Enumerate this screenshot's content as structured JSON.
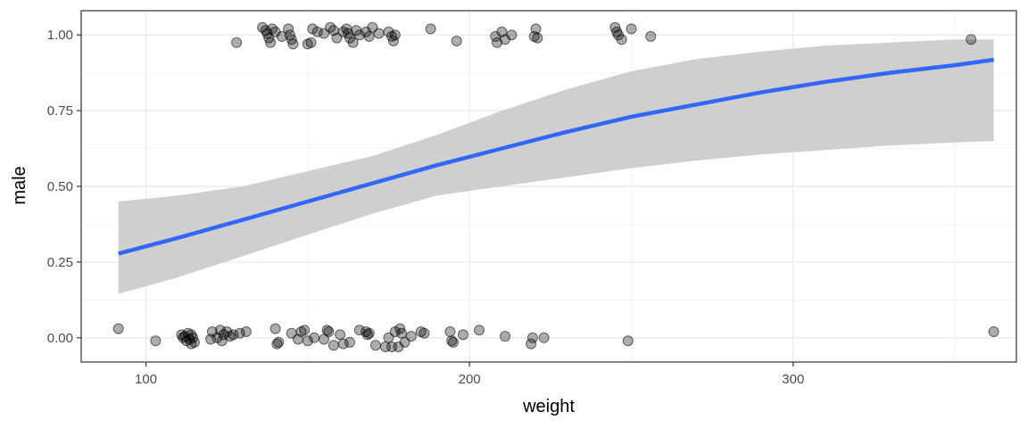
{
  "chart_data": {
    "type": "scatter",
    "title": "",
    "xlabel": "weight",
    "ylabel": "male",
    "xlim": [
      80,
      369
    ],
    "ylim": [
      -0.08,
      1.08
    ],
    "x_ticks": [
      100,
      200,
      300
    ],
    "x_tick_labels": [
      "100",
      "200",
      "300"
    ],
    "y_ticks": [
      0,
      0.25,
      0.5,
      0.75,
      1.0
    ],
    "y_tick_labels": [
      "0.00",
      "0.25",
      "0.50",
      "0.75",
      "1.00"
    ],
    "grid": true,
    "legend": "none",
    "colors": {
      "points": "#000000",
      "fit_line": "#3366ff",
      "confidence_band": "#cccccc",
      "grid_major": "#ebebeb",
      "grid_minor": "#f5f5f5",
      "panel_border": "#333333"
    },
    "series": [
      {
        "kind": "points",
        "points": [
          [
            91.5,
            0.03
          ],
          [
            103,
            -0.01
          ],
          [
            111,
            0.01
          ],
          [
            111.5,
            0.0
          ],
          [
            112,
            0.005
          ],
          [
            112.5,
            -0.01
          ],
          [
            113,
            0.015
          ],
          [
            113.5,
            -0.005
          ],
          [
            114,
            0.01
          ],
          [
            114,
            -0.02
          ],
          [
            114.5,
            0.0
          ],
          [
            115,
            -0.015
          ],
          [
            120,
            -0.005
          ],
          [
            120.5,
            0.02
          ],
          [
            122,
            0.0
          ],
          [
            123,
            0.025
          ],
          [
            123.5,
            -0.01
          ],
          [
            124,
            0.01
          ],
          [
            125,
            0.02
          ],
          [
            126,
            0.005
          ],
          [
            127,
            0.01
          ],
          [
            129,
            0.015
          ],
          [
            131,
            0.02
          ],
          [
            140,
            0.03
          ],
          [
            140.5,
            -0.02
          ],
          [
            141,
            -0.015
          ],
          [
            145,
            0.015
          ],
          [
            147,
            -0.005
          ],
          [
            148,
            0.02
          ],
          [
            149,
            0.025
          ],
          [
            150,
            -0.01
          ],
          [
            152,
            0.0
          ],
          [
            155,
            -0.005
          ],
          [
            156,
            0.025
          ],
          [
            156.5,
            0.02
          ],
          [
            158,
            -0.025
          ],
          [
            160,
            0.01
          ],
          [
            161,
            -0.02
          ],
          [
            163,
            -0.015
          ],
          [
            166,
            0.025
          ],
          [
            168,
            0.02
          ],
          [
            168.5,
            0.01
          ],
          [
            169,
            0.015
          ],
          [
            171,
            -0.025
          ],
          [
            174,
            -0.03
          ],
          [
            175,
            0.0
          ],
          [
            176,
            -0.03
          ],
          [
            177,
            0.02
          ],
          [
            178,
            -0.03
          ],
          [
            178.5,
            0.03
          ],
          [
            179,
            0.015
          ],
          [
            180,
            -0.015
          ],
          [
            182,
            0.005
          ],
          [
            185,
            0.02
          ],
          [
            186,
            0.015
          ],
          [
            194,
            0.02
          ],
          [
            194.5,
            -0.01
          ],
          [
            195,
            -0.015
          ],
          [
            198,
            0.01
          ],
          [
            203,
            0.025
          ],
          [
            211,
            0.005
          ],
          [
            219,
            -0.02
          ],
          [
            219.5,
            0.0
          ],
          [
            223,
            0.0
          ],
          [
            249,
            -0.01
          ],
          [
            362,
            0.02
          ],
          [
            128,
            0.975
          ],
          [
            136,
            1.025
          ],
          [
            137,
            1.015
          ],
          [
            137.5,
            1.005
          ],
          [
            138,
            0.99
          ],
          [
            138.5,
            0.975
          ],
          [
            139,
            1.02
          ],
          [
            140,
            1.01
          ],
          [
            142,
            0.995
          ],
          [
            144,
            1.02
          ],
          [
            144.5,
            1.0
          ],
          [
            145,
            0.985
          ],
          [
            145.5,
            0.97
          ],
          [
            150,
            0.97
          ],
          [
            151,
            0.975
          ],
          [
            151.5,
            1.02
          ],
          [
            153,
            1.01
          ],
          [
            155,
            1.005
          ],
          [
            157,
            1.025
          ],
          [
            158,
            1.015
          ],
          [
            159,
            0.99
          ],
          [
            161,
            1.01
          ],
          [
            162,
            1.02
          ],
          [
            162.5,
            1.005
          ],
          [
            163,
            0.99
          ],
          [
            164,
            0.975
          ],
          [
            165,
            1.015
          ],
          [
            166,
            1.0
          ],
          [
            168,
            1.01
          ],
          [
            169,
            0.995
          ],
          [
            170,
            1.025
          ],
          [
            172,
            1.005
          ],
          [
            175,
            1.01
          ],
          [
            176,
            0.995
          ],
          [
            176.5,
            0.98
          ],
          [
            177,
            1.0
          ],
          [
            188,
            1.02
          ],
          [
            196,
            0.98
          ],
          [
            208,
            0.995
          ],
          [
            208.5,
            0.975
          ],
          [
            210,
            1.01
          ],
          [
            211,
            0.985
          ],
          [
            213,
            1.0
          ],
          [
            220,
            0.995
          ],
          [
            220.5,
            1.02
          ],
          [
            221,
            0.99
          ],
          [
            245,
            1.025
          ],
          [
            245.5,
            1.01
          ],
          [
            246,
            1.0
          ],
          [
            247,
            0.985
          ],
          [
            250,
            1.02
          ],
          [
            256,
            0.995
          ],
          [
            355,
            0.985
          ]
        ]
      },
      {
        "kind": "fit_line",
        "x": [
          91.5,
          110,
          130,
          150,
          170,
          190,
          210,
          230,
          250,
          270,
          290,
          310,
          330,
          350,
          362
        ],
        "y": [
          0.278,
          0.33,
          0.39,
          0.45,
          0.51,
          0.57,
          0.625,
          0.68,
          0.73,
          0.77,
          0.81,
          0.845,
          0.875,
          0.9,
          0.918
        ]
      },
      {
        "kind": "confidence_band",
        "x": [
          91.5,
          110,
          130,
          150,
          170,
          190,
          210,
          230,
          250,
          270,
          290,
          310,
          330,
          350,
          362
        ],
        "lower": [
          0.145,
          0.2,
          0.27,
          0.34,
          0.41,
          0.47,
          0.5,
          0.53,
          0.56,
          0.585,
          0.605,
          0.62,
          0.635,
          0.645,
          0.65
        ],
        "upper": [
          0.45,
          0.47,
          0.5,
          0.55,
          0.6,
          0.67,
          0.75,
          0.82,
          0.88,
          0.92,
          0.945,
          0.965,
          0.975,
          0.985,
          0.985
        ]
      }
    ]
  }
}
